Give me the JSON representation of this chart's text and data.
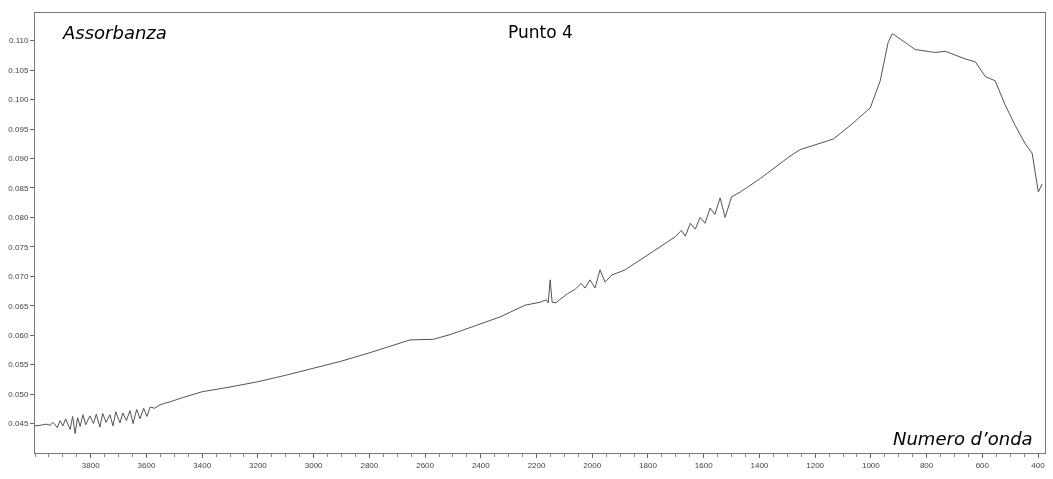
{
  "chart_data": {
    "type": "line",
    "title": "Punto 4",
    "xlabel": "Numero d’onda",
    "ylabel": "Assorbanza",
    "series": [
      {
        "color": "#555555",
        "x": [
          4000,
          3982,
          3960,
          3946,
          3935,
          3920,
          3910,
          3900,
          3890,
          3874,
          3865,
          3856,
          3847,
          3838,
          3828,
          3818,
          3803,
          3790,
          3780,
          3767,
          3757,
          3745,
          3731,
          3720,
          3710,
          3695,
          3685,
          3672,
          3659,
          3648,
          3635,
          3623,
          3610,
          3598,
          3587,
          3570,
          3551,
          3515,
          3470,
          3400,
          3300,
          3200,
          3100,
          3000,
          2900,
          2800,
          2654,
          2571,
          2510,
          2420,
          2331,
          2241,
          2187,
          2165,
          2158,
          2151,
          2144,
          2130,
          2115,
          2090,
          2061,
          2040,
          2026,
          2008,
          1990,
          1972,
          1954,
          1930,
          1882,
          1792,
          1702,
          1680,
          1666,
          1648,
          1630,
          1613,
          1595,
          1577,
          1560,
          1541,
          1523,
          1500,
          1469,
          1397,
          1290,
          1254,
          1135,
          1074,
          1002,
          967,
          938,
          923,
          895,
          841,
          769,
          733,
          661,
          625,
          589,
          554,
          518,
          482,
          446,
          421,
          399,
          385
        ],
        "values": [
          0.0446,
          0.0447,
          0.0449,
          0.0447,
          0.0452,
          0.0443,
          0.0455,
          0.0446,
          0.0458,
          0.044,
          0.0462,
          0.0433,
          0.046,
          0.0445,
          0.0465,
          0.0448,
          0.0463,
          0.045,
          0.0466,
          0.0444,
          0.0467,
          0.0452,
          0.0465,
          0.0446,
          0.047,
          0.0451,
          0.0468,
          0.0455,
          0.0472,
          0.045,
          0.0474,
          0.0458,
          0.0476,
          0.0462,
          0.0478,
          0.0476,
          0.0482,
          0.0487,
          0.0494,
          0.0504,
          0.0512,
          0.0521,
          0.0532,
          0.0544,
          0.0556,
          0.057,
          0.0592,
          0.0593,
          0.0601,
          0.0616,
          0.0631,
          0.0651,
          0.0656,
          0.066,
          0.0655,
          0.0694,
          0.0656,
          0.0655,
          0.0661,
          0.067,
          0.0678,
          0.0688,
          0.068,
          0.0694,
          0.068,
          0.0711,
          0.069,
          0.0702,
          0.0711,
          0.0739,
          0.0767,
          0.0778,
          0.0768,
          0.079,
          0.078,
          0.08,
          0.079,
          0.0816,
          0.0805,
          0.0833,
          0.08,
          0.0835,
          0.0843,
          0.0866,
          0.0904,
          0.0915,
          0.0933,
          0.0956,
          0.0986,
          0.1031,
          0.1097,
          0.1112,
          0.1103,
          0.1085,
          0.108,
          0.1082,
          0.1069,
          0.1064,
          0.1039,
          0.1032,
          0.0991,
          0.0956,
          0.0925,
          0.0909,
          0.0843,
          0.0857
        ]
      }
    ],
    "xlim": [
      4000,
      375
    ],
    "xticks": [
      3800,
      3600,
      3400,
      3200,
      3000,
      2800,
      2600,
      2400,
      2200,
      2000,
      1800,
      1600,
      1400,
      1200,
      1000,
      800,
      600,
      400
    ],
    "ylim": [
      0.04,
      0.1147
    ],
    "yticks": [
      {
        "value": 0.045,
        "label": "0.045"
      },
      {
        "value": 0.05,
        "label": "0.050"
      },
      {
        "value": 0.055,
        "label": "0.055"
      },
      {
        "value": 0.06,
        "label": "0.060"
      },
      {
        "value": 0.065,
        "label": "0.065"
      },
      {
        "value": 0.07,
        "label": "0.070"
      },
      {
        "value": 0.075,
        "label": "0.075"
      },
      {
        "value": 0.08,
        "label": "0.080"
      },
      {
        "value": 0.085,
        "label": "0.085"
      },
      {
        "value": 0.09,
        "label": "0.090"
      },
      {
        "value": 0.095,
        "label": "0.095"
      },
      {
        "value": 0.1,
        "label": "0.100"
      },
      {
        "value": 0.105,
        "label": "0.105"
      },
      {
        "value": 0.11,
        "label": "0.110"
      }
    ],
    "grid": false,
    "marker": "none",
    "line_style": "solid"
  }
}
